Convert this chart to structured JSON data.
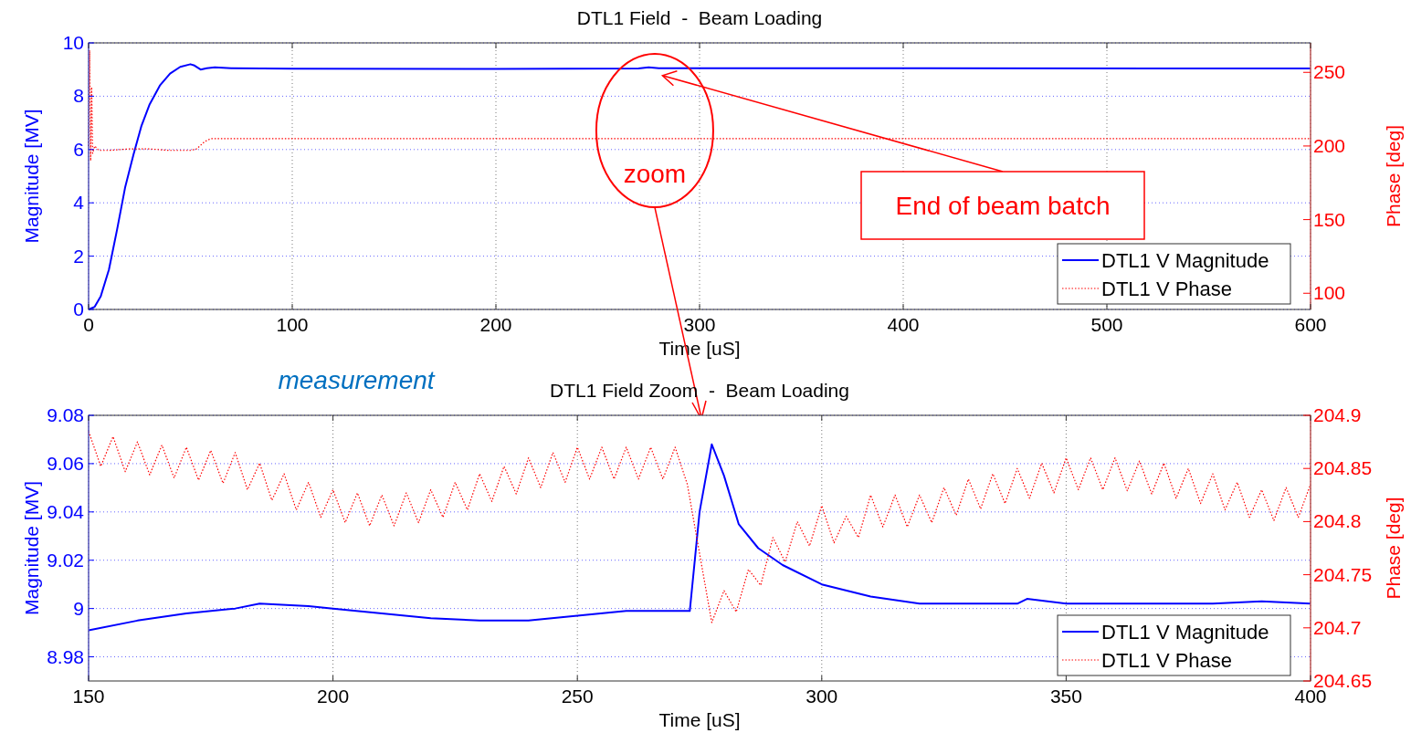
{
  "chart_data": [
    {
      "type": "line",
      "title": "DTL1 Field  -  Beam Loading",
      "xlabel": "Time [uS]",
      "ylabel": "Magnitude [MV]",
      "y2label": "Phase [deg]",
      "xlim": [
        0,
        600
      ],
      "xticks": [
        0,
        100,
        200,
        300,
        400,
        500,
        600
      ],
      "ylim": [
        0,
        10
      ],
      "yticks": [
        0,
        2,
        4,
        6,
        8,
        10
      ],
      "y2lim": [
        89,
        270
      ],
      "y2ticks": [
        100,
        150,
        200,
        250
      ],
      "grid": true,
      "legend": "bottom right",
      "annotations": [
        {
          "text": "End of beam batch",
          "x": 280,
          "y": 9.05
        },
        "zoom"
      ],
      "series": [
        {
          "name": "DTL1 V Magnitude",
          "color": "#0000ff",
          "line_style": "solid",
          "x": [
            0,
            3,
            6,
            10,
            14,
            18,
            22,
            26,
            30,
            35,
            40,
            45,
            50,
            52,
            55,
            58,
            62,
            70,
            100,
            200,
            270,
            275,
            280,
            290,
            400,
            600
          ],
          "values": [
            0,
            0.1,
            0.5,
            1.5,
            3.0,
            4.6,
            5.8,
            6.9,
            7.7,
            8.4,
            8.85,
            9.1,
            9.2,
            9.15,
            9.0,
            9.05,
            9.08,
            9.05,
            9.03,
            9.02,
            9.04,
            9.08,
            9.05,
            9.05,
            9.05,
            9.04
          ]
        },
        {
          "name": "DTL1 V Phase",
          "color": "#ff0000",
          "line_style": "dotted",
          "axis": "y2",
          "x": [
            0,
            0.5,
            1,
            1.5,
            2,
            3,
            5,
            10,
            20,
            30,
            40,
            50,
            53,
            57,
            60,
            100,
            300,
            600
          ],
          "values": [
            200,
            265,
            190,
            240,
            195,
            200,
            197,
            197,
            198,
            198,
            197,
            197,
            198,
            203,
            205,
            205,
            205,
            205
          ]
        }
      ]
    },
    {
      "type": "line",
      "title": "DTL1 Field Zoom  -  Beam Loading",
      "xlabel": "Time [uS]",
      "ylabel": "Magnitude [MV]",
      "y2label": "Phase [deg]",
      "xlim": [
        150,
        400
      ],
      "xticks": [
        150,
        200,
        250,
        300,
        350,
        400
      ],
      "ylim": [
        8.97,
        9.08
      ],
      "yticks": [
        8.98,
        9,
        9.02,
        9.04,
        9.06,
        9.08
      ],
      "y2lim": [
        204.65,
        204.9
      ],
      "y2ticks": [
        204.65,
        204.7,
        204.75,
        204.8,
        204.85,
        204.9
      ],
      "grid": true,
      "legend": "bottom right",
      "annotations": [
        "measurement"
      ],
      "series": [
        {
          "name": "DTL1 V Magnitude",
          "color": "#0000ff",
          "line_style": "solid",
          "x": [
            150,
            160,
            170,
            180,
            185,
            195,
            200,
            210,
            220,
            230,
            240,
            250,
            260,
            270,
            273,
            275,
            277.5,
            280,
            283,
            287,
            292,
            300,
            310,
            320,
            340,
            342,
            350,
            360,
            370,
            380,
            390,
            400
          ],
          "values": [
            8.991,
            8.995,
            8.998,
            9.0,
            9.002,
            9.001,
            9.0,
            8.998,
            8.996,
            8.995,
            8.995,
            8.997,
            8.999,
            8.999,
            8.999,
            9.04,
            9.068,
            9.055,
            9.035,
            9.025,
            9.018,
            9.01,
            9.005,
            9.002,
            9.002,
            9.004,
            9.002,
            9.002,
            9.002,
            9.002,
            9.003,
            9.002
          ]
        },
        {
          "name": "DTL1 V Phase",
          "color": "#ff0000",
          "line_style": "dotted",
          "axis": "y2",
          "x": [
            150,
            152.5,
            155,
            157.5,
            160,
            162.5,
            165,
            167.5,
            170,
            172.5,
            175,
            177.5,
            180,
            182.5,
            185,
            187.5,
            190,
            192.5,
            195,
            197.5,
            200,
            202.5,
            205,
            207.5,
            210,
            212.5,
            215,
            217.5,
            220,
            222.5,
            225,
            227.5,
            230,
            232.5,
            235,
            237.5,
            240,
            242.5,
            245,
            247.5,
            250,
            252.5,
            255,
            257.5,
            260,
            262.5,
            265,
            267.5,
            270,
            272.5,
            275,
            277.5,
            280,
            282.5,
            285,
            287.5,
            290,
            292.5,
            295,
            297.5,
            300,
            302.5,
            305,
            307.5,
            310,
            312.5,
            315,
            317.5,
            320,
            322.5,
            325,
            327.5,
            330,
            332.5,
            335,
            337.5,
            340,
            342.5,
            345,
            347.5,
            350,
            352.5,
            355,
            357.5,
            360,
            362.5,
            365,
            367.5,
            370,
            372.5,
            375,
            377.5,
            380,
            382.5,
            385,
            387.5,
            390,
            392.5,
            395,
            397.5,
            400
          ],
          "values": [
            204.885,
            204.852,
            204.88,
            204.847,
            204.875,
            204.844,
            204.872,
            204.841,
            204.87,
            204.839,
            204.867,
            204.836,
            204.865,
            204.83,
            204.855,
            204.82,
            204.845,
            204.811,
            204.837,
            204.804,
            204.83,
            204.799,
            204.827,
            204.796,
            204.825,
            204.796,
            204.827,
            204.799,
            204.83,
            204.804,
            204.837,
            204.811,
            204.845,
            204.819,
            204.852,
            204.826,
            204.86,
            204.832,
            204.865,
            204.837,
            204.87,
            204.84,
            204.87,
            204.84,
            204.87,
            204.84,
            204.87,
            204.84,
            204.87,
            204.835,
            204.77,
            204.705,
            204.735,
            204.715,
            204.755,
            204.74,
            204.785,
            204.762,
            204.8,
            204.777,
            204.815,
            204.78,
            204.805,
            204.785,
            204.825,
            204.795,
            204.825,
            204.795,
            204.825,
            204.799,
            204.832,
            204.806,
            204.84,
            204.812,
            204.845,
            204.817,
            204.85,
            204.822,
            204.855,
            204.827,
            204.86,
            204.83,
            204.86,
            204.83,
            204.86,
            204.829,
            204.857,
            204.826,
            204.855,
            204.822,
            204.85,
            204.817,
            204.845,
            204.811,
            204.837,
            204.804,
            204.83,
            204.801,
            204.832,
            204.804,
            204.835
          ]
        }
      ]
    }
  ]
}
